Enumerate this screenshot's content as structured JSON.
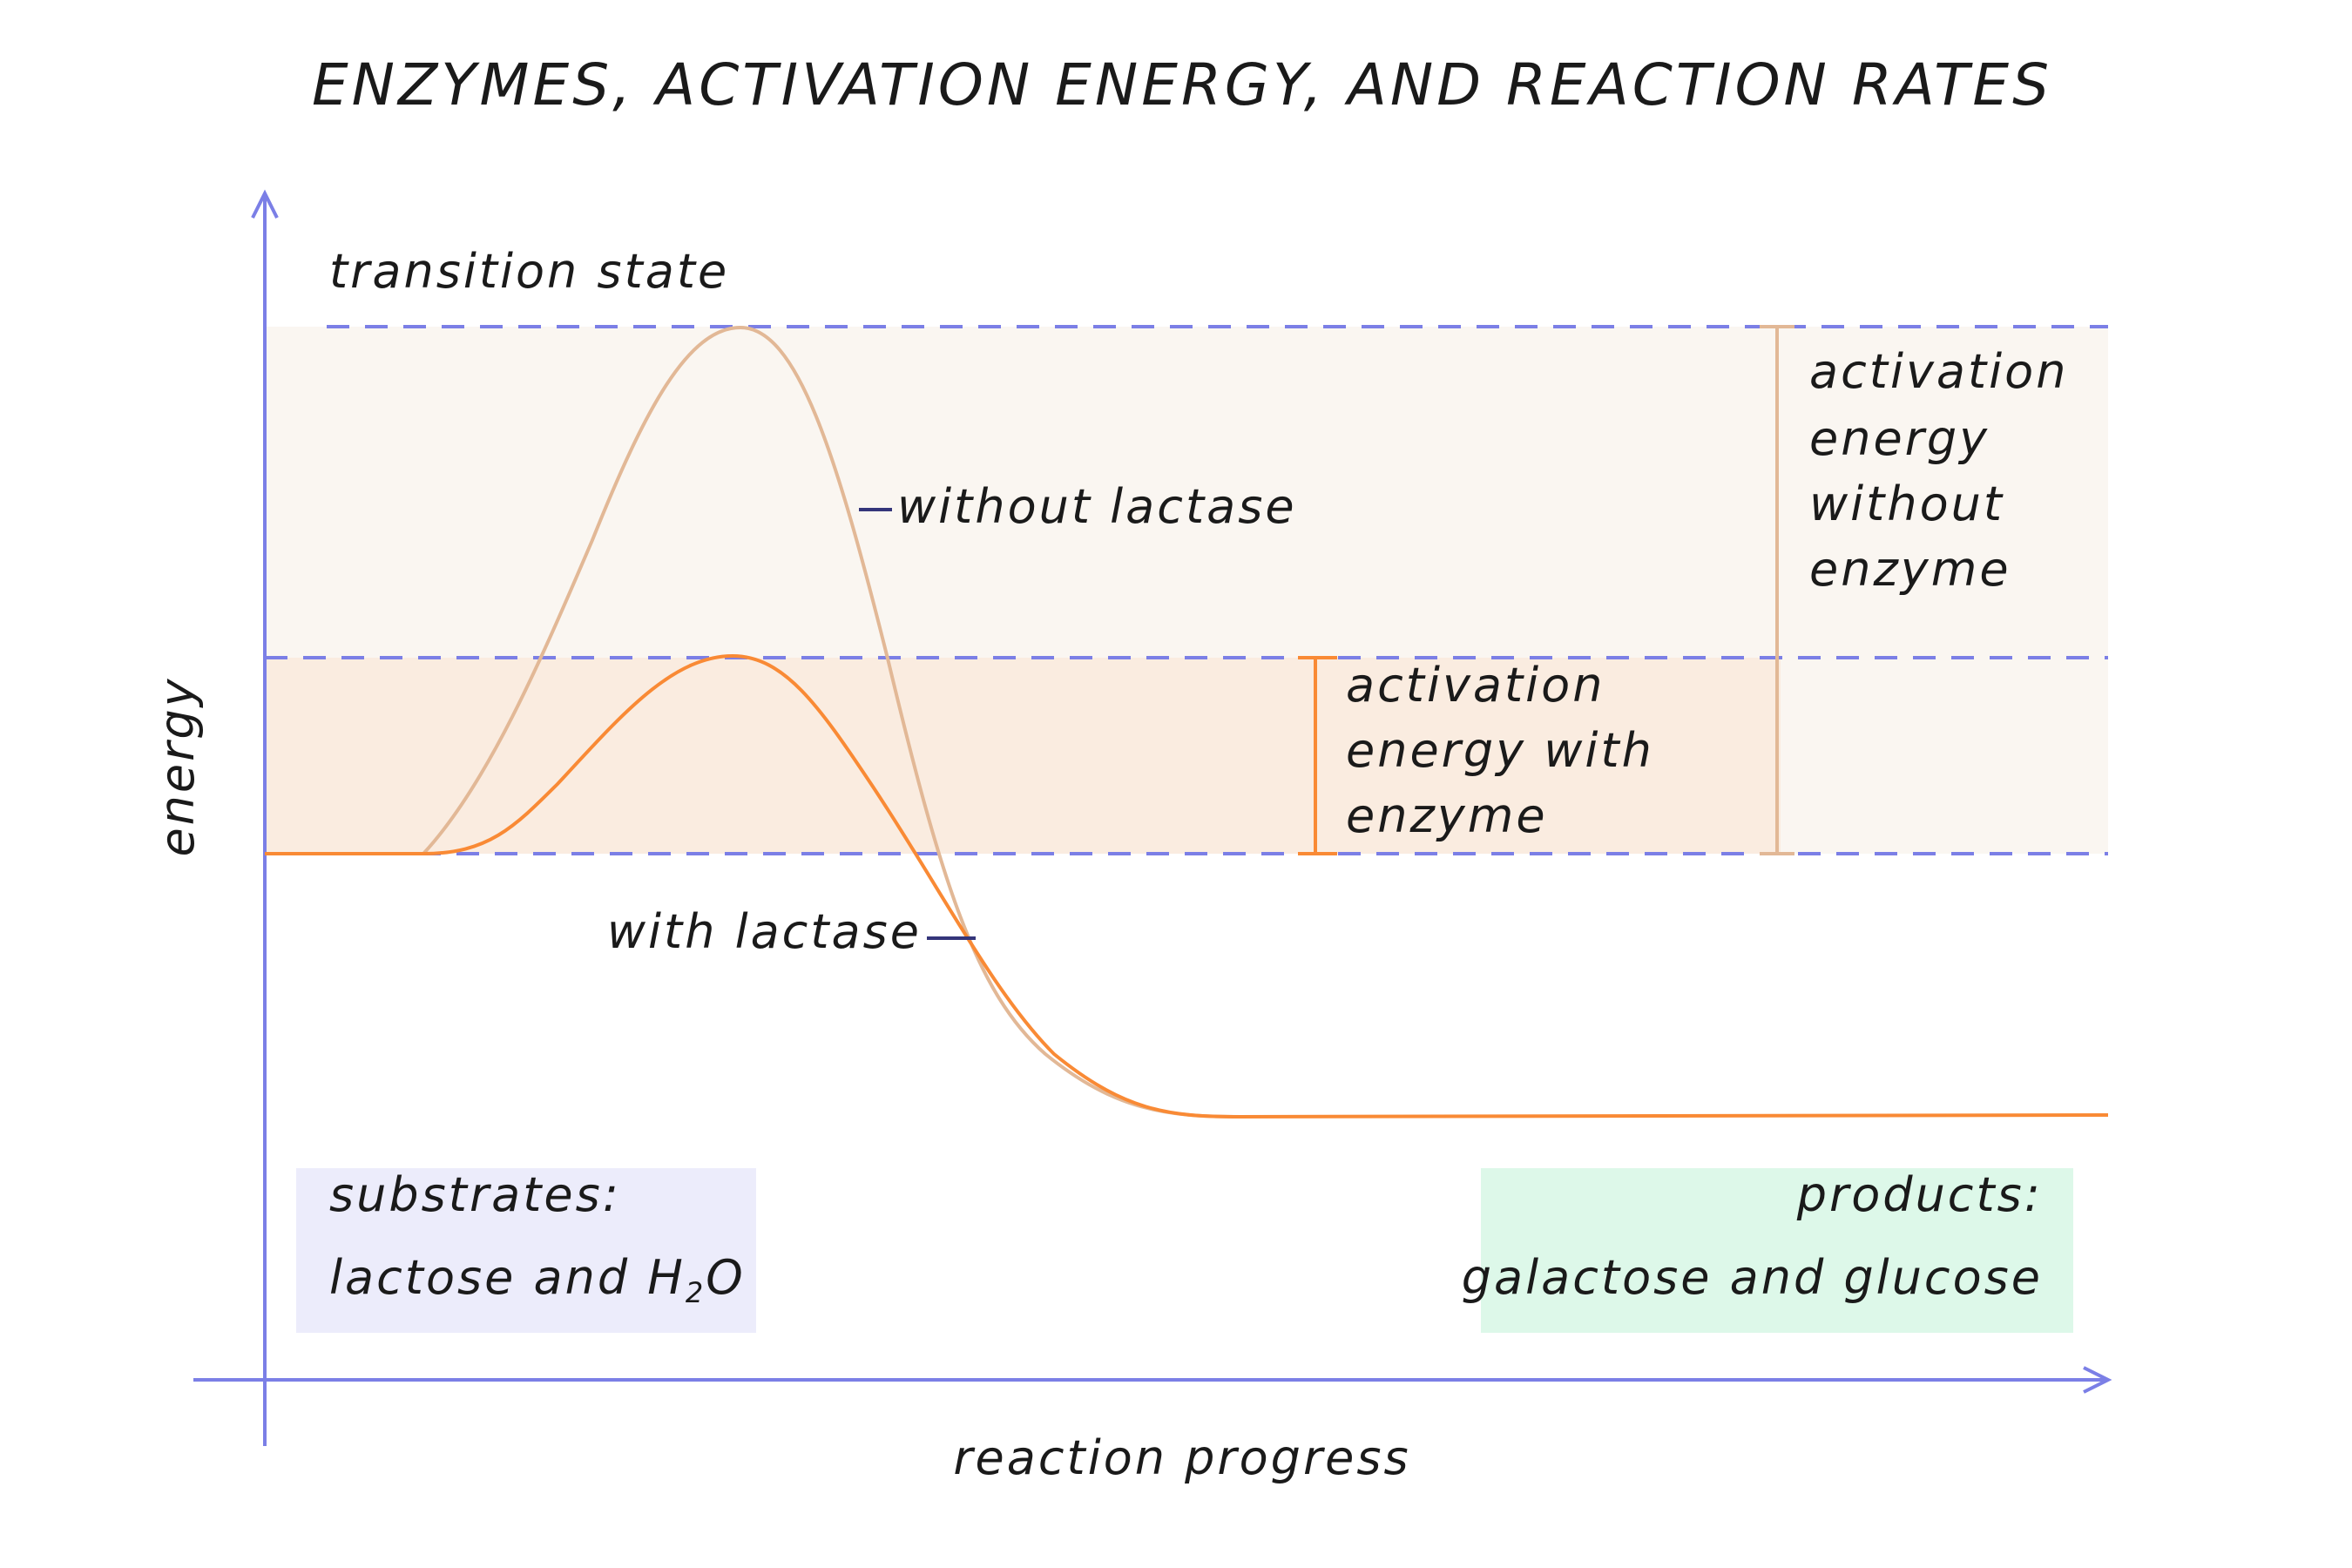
{
  "title": "ENZYMES, ACTIVATION ENERGY, AND REACTION RATES",
  "axes": {
    "y_label": "energy",
    "x_label": "reaction progress"
  },
  "levels": {
    "transition_state": "transition state"
  },
  "curves": {
    "without_enzyme": {
      "label": "without lactase",
      "color": "#e2b896"
    },
    "with_enzyme": {
      "label": "with lactase",
      "color": "#f98a35"
    }
  },
  "brackets": {
    "with_enzyme": [
      "activation",
      "energy with",
      "enzyme"
    ],
    "without_enzyme": [
      "activation",
      "energy",
      "without",
      "enzyme"
    ]
  },
  "boxes": {
    "substrates": {
      "heading": "substrates:",
      "text": "lactose and H",
      "subscript": "2",
      "text_after": "O",
      "color": "#ececfb"
    },
    "products": {
      "heading": "products:",
      "text": "galactose and glucose",
      "color": "#ddf8e9"
    }
  },
  "colors": {
    "axis": "#7b7fe6",
    "band_without": "#faf6f1",
    "band_with": "#faece0",
    "leader": "#34357a"
  }
}
